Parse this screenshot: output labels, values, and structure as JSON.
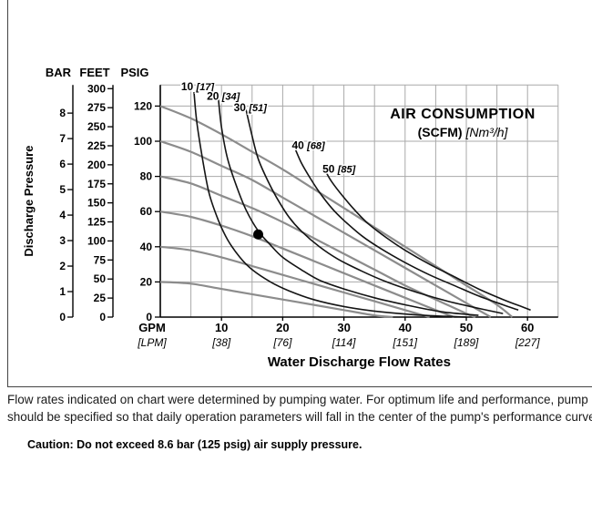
{
  "figure": {
    "caption_line1": "Flow rates indicated on chart were determined by pumping water. For optimum life and performance, pump",
    "caption_line2": "should be specified so that daily operation parameters will fall in the center of the pump's performance curve",
    "caution": "Caution: Do not exceed 8.6 bar (125 psig) air supply pressure."
  },
  "chart_data": {
    "type": "line",
    "title": "AIR CONSUMPTION",
    "subtitle_bold": "(SCFM)",
    "subtitle_italic": "[Nm³/h]",
    "xlabel": "Water Discharge Flow Rates",
    "ylabel": "Discharge Pressure",
    "xlim_gpm": [
      0,
      65
    ],
    "ylim_psig": [
      0,
      132
    ],
    "grid": {
      "x_step_gpm": 5,
      "y_step_psig": 20,
      "on": true
    },
    "colors": {
      "pressure_curves": "#8c8c8c",
      "air_curves": "#141414",
      "grid": "#a9a9a9",
      "axis": "#000000"
    },
    "x_axis": {
      "primary": "GPM",
      "secondary": "[LPM]",
      "ticks": [
        {
          "gpm": "10",
          "lpm": "[38]"
        },
        {
          "gpm": "20",
          "lpm": "[76]"
        },
        {
          "gpm": "30",
          "lpm": "[114]"
        },
        {
          "gpm": "40",
          "lpm": "[151]"
        },
        {
          "gpm": "50",
          "lpm": "[189]"
        },
        {
          "gpm": "60",
          "lpm": "[227]"
        }
      ]
    },
    "y_axes": [
      {
        "name": "BAR",
        "psig_per_unit": 14.5,
        "ticks": [
          0,
          1,
          2,
          3,
          4,
          5,
          6,
          7,
          8
        ]
      },
      {
        "name": "FEET",
        "psig_per_unit": 0.433,
        "ticks": [
          0,
          25,
          50,
          75,
          100,
          125,
          150,
          175,
          200,
          225,
          250,
          275,
          300
        ]
      },
      {
        "name": "PSIG",
        "psig_per_unit": 1,
        "ticks": [
          0,
          20,
          40,
          60,
          80,
          100,
          120
        ]
      }
    ],
    "pressure_curves_psig": [
      {
        "air_supply_psig": 120,
        "points": [
          [
            0,
            120
          ],
          [
            5,
            113
          ],
          [
            10,
            104
          ],
          [
            15,
            94
          ],
          [
            20,
            84
          ],
          [
            25,
            73
          ],
          [
            30,
            62
          ],
          [
            35,
            51
          ],
          [
            40,
            40
          ],
          [
            45,
            29
          ],
          [
            50,
            18
          ],
          [
            55,
            7
          ],
          [
            57.5,
            0
          ]
        ]
      },
      {
        "air_supply_psig": 100,
        "points": [
          [
            0,
            100
          ],
          [
            5,
            94
          ],
          [
            10,
            86
          ],
          [
            15,
            78
          ],
          [
            20,
            68
          ],
          [
            25,
            58
          ],
          [
            30,
            48
          ],
          [
            35,
            38
          ],
          [
            40,
            28
          ],
          [
            45,
            18
          ],
          [
            50,
            8
          ],
          [
            54,
            0
          ]
        ]
      },
      {
        "air_supply_psig": 80,
        "points": [
          [
            0,
            80
          ],
          [
            5,
            76
          ],
          [
            10,
            69
          ],
          [
            15,
            62
          ],
          [
            20,
            54
          ],
          [
            25,
            45
          ],
          [
            30,
            36
          ],
          [
            35,
            27
          ],
          [
            40,
            18
          ],
          [
            45,
            10
          ],
          [
            50,
            2
          ],
          [
            51.5,
            0
          ]
        ]
      },
      {
        "air_supply_psig": 60,
        "points": [
          [
            0,
            60
          ],
          [
            5,
            57
          ],
          [
            10,
            52
          ],
          [
            15,
            46
          ],
          [
            20,
            39
          ],
          [
            25,
            32
          ],
          [
            30,
            25
          ],
          [
            35,
            18
          ],
          [
            40,
            11
          ],
          [
            45,
            4
          ],
          [
            48,
            0
          ]
        ]
      },
      {
        "air_supply_psig": 40,
        "points": [
          [
            0,
            40
          ],
          [
            5,
            38
          ],
          [
            10,
            34
          ],
          [
            15,
            29
          ],
          [
            20,
            24
          ],
          [
            25,
            19
          ],
          [
            30,
            14
          ],
          [
            35,
            9
          ],
          [
            40,
            4
          ],
          [
            44,
            0
          ]
        ]
      },
      {
        "air_supply_psig": 20,
        "points": [
          [
            0,
            20
          ],
          [
            5,
            19
          ],
          [
            10,
            16
          ],
          [
            15,
            13
          ],
          [
            20,
            10
          ],
          [
            25,
            7
          ],
          [
            30,
            4
          ],
          [
            35,
            1
          ],
          [
            38,
            0
          ]
        ]
      }
    ],
    "air_curves_scfm": [
      {
        "scfm": 10,
        "nm3h": 17,
        "label": "10",
        "label_bracket": "[17]",
        "label_pos": [
          3.4,
          129
        ],
        "points": [
          [
            5.5,
            128
          ],
          [
            6,
            110
          ],
          [
            7,
            88
          ],
          [
            8,
            70
          ],
          [
            9.5,
            55
          ],
          [
            11,
            44
          ],
          [
            13,
            34
          ],
          [
            15,
            27
          ],
          [
            18,
            20
          ],
          [
            21,
            15
          ],
          [
            25,
            10
          ],
          [
            30,
            6
          ],
          [
            36,
            3
          ],
          [
            43,
            1
          ],
          [
            50,
            0
          ]
        ]
      },
      {
        "scfm": 20,
        "nm3h": 34,
        "label": "20",
        "label_bracket": "[34]",
        "label_pos": [
          7.6,
          123.5
        ],
        "points": [
          [
            9.5,
            124
          ],
          [
            10,
            108
          ],
          [
            11,
            90
          ],
          [
            12.5,
            74
          ],
          [
            14,
            61
          ],
          [
            16,
            49
          ],
          [
            18,
            41
          ],
          [
            20,
            34
          ],
          [
            23,
            27
          ],
          [
            26,
            21
          ],
          [
            30,
            16
          ],
          [
            35,
            11
          ],
          [
            40,
            7
          ],
          [
            46,
            3
          ],
          [
            52,
            1
          ]
        ]
      },
      {
        "scfm": 30,
        "nm3h": 51,
        "label": "30",
        "label_bracket": "[51]",
        "label_pos": [
          12.0,
          117
        ],
        "points": [
          [
            14,
            118
          ],
          [
            15,
            103
          ],
          [
            16,
            90
          ],
          [
            17.5,
            78
          ],
          [
            19,
            68
          ],
          [
            21,
            57
          ],
          [
            23,
            49
          ],
          [
            26,
            40
          ],
          [
            29,
            33
          ],
          [
            33,
            26
          ],
          [
            37,
            20
          ],
          [
            42,
            14
          ],
          [
            47,
            9
          ],
          [
            52,
            5
          ],
          [
            56,
            2
          ]
        ]
      },
      {
        "scfm": 40,
        "nm3h": 68,
        "label": "40",
        "label_bracket": "[68]",
        "label_pos": [
          21.5,
          95.5
        ],
        "points": [
          [
            22,
            96
          ],
          [
            23,
            88
          ],
          [
            24.5,
            79
          ],
          [
            26,
            71
          ],
          [
            28,
            62
          ],
          [
            30,
            55
          ],
          [
            33,
            46
          ],
          [
            36,
            39
          ],
          [
            40,
            31
          ],
          [
            44,
            24
          ],
          [
            48,
            18
          ],
          [
            52,
            12
          ],
          [
            56,
            7
          ],
          [
            58.5,
            4
          ]
        ]
      },
      {
        "scfm": 50,
        "nm3h": 85,
        "label": "50",
        "label_bracket": "[85]",
        "label_pos": [
          26.5,
          82
        ],
        "points": [
          [
            27,
            83
          ],
          [
            28,
            77
          ],
          [
            30,
            68
          ],
          [
            32,
            60
          ],
          [
            34,
            53
          ],
          [
            37,
            45
          ],
          [
            40,
            38
          ],
          [
            44,
            30
          ],
          [
            48,
            23
          ],
          [
            52,
            16
          ],
          [
            56,
            10
          ],
          [
            59,
            6
          ],
          [
            60.5,
            4
          ]
        ]
      }
    ],
    "operating_point": {
      "gpm": 16,
      "psig": 47
    }
  }
}
